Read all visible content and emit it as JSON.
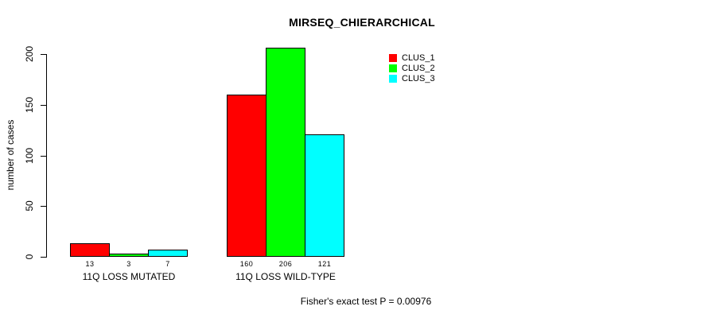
{
  "chart_data": {
    "type": "bar",
    "title": "MIRSEQ_CHIERARCHICAL",
    "ylabel": "number of cases",
    "xlabel": "",
    "categories": [
      "11Q LOSS MUTATED",
      "11Q LOSS WILD-TYPE"
    ],
    "series": [
      {
        "name": "CLUS_1",
        "color": "#ff0000",
        "values": [
          13,
          160
        ]
      },
      {
        "name": "CLUS_2",
        "color": "#00ff00",
        "values": [
          3,
          206
        ]
      },
      {
        "name": "CLUS_3",
        "color": "#00ffff",
        "values": [
          7,
          121
        ]
      }
    ],
    "show_value_labels": true,
    "yticks": [
      0,
      50,
      100,
      150,
      200
    ],
    "ylim": [
      0,
      200
    ],
    "grid": false,
    "legend_position": "top-right",
    "annotation": "Fisher's exact test P = 0.00976"
  }
}
